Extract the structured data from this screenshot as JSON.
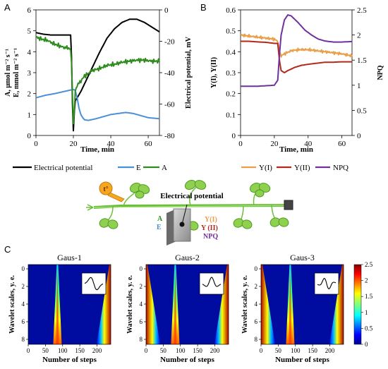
{
  "panel_labels": {
    "a": "A",
    "b": "B",
    "c": "C"
  },
  "schematic": {
    "title": "Electrical potential",
    "heater_label": "t°",
    "left_labels": {
      "a": "A",
      "e": "E"
    },
    "right_labels": {
      "y1": "Y(I)",
      "y2": "Y (II)",
      "npq": "NPQ"
    }
  },
  "colors": {
    "electrical_potential": "#000000",
    "E": "#4a90d9",
    "A": "#2e8b1e",
    "YI": "#e8a04a",
    "YII": "#b02a1a",
    "NPQ": "#7030a0"
  },
  "chart_data": [
    {
      "type": "line",
      "panel": "A",
      "xlabel": "Time, min",
      "ylabel_left_1": "A, μmol m⁻² s⁻¹",
      "ylabel_left_2": "E, mmol m⁻² s⁻¹",
      "ylabel_right": "Electrical potential, mV",
      "xlim": [
        0,
        66
      ],
      "xticks": [
        "0",
        "20",
        "40",
        "60"
      ],
      "ylim_left": [
        0,
        6
      ],
      "yticks_left": [
        "0",
        "1",
        "2",
        "3",
        "4",
        "5",
        "6"
      ],
      "ylim_right": [
        -80,
        0
      ],
      "yticks_right": [
        "0",
        "-20",
        "-40",
        "-60",
        "-80"
      ],
      "legend": [
        "Electrical potential",
        "E",
        "A"
      ],
      "series": [
        {
          "name": "Electrical potential",
          "axis": "right",
          "x": [
            0,
            4,
            8,
            12,
            16,
            18.5,
            19,
            19.5,
            20,
            20.5,
            21,
            22,
            24,
            26,
            30,
            34,
            38,
            42,
            46,
            50,
            54,
            58,
            62,
            66
          ],
          "y": [
            -14.5,
            -15.5,
            -16,
            -16,
            -16,
            -16,
            -30,
            -60,
            -77,
            -65,
            -58,
            -56,
            -52,
            -47,
            -37,
            -27,
            -18,
            -12,
            -8,
            -6,
            -6,
            -8,
            -11,
            -14
          ]
        },
        {
          "name": "E",
          "axis": "left",
          "x": [
            0,
            5,
            10,
            15,
            20,
            21,
            22,
            23,
            24,
            25,
            26,
            28,
            32,
            36,
            40,
            44,
            48,
            52,
            56,
            60,
            66
          ],
          "y": [
            1.8,
            1.92,
            2.0,
            2.1,
            2.2,
            2.15,
            1.8,
            1.3,
            1.0,
            0.85,
            0.75,
            0.72,
            0.8,
            0.9,
            1.0,
            1.05,
            1.1,
            1.05,
            0.95,
            0.85,
            0.8
          ]
        },
        {
          "name": "A",
          "axis": "left",
          "x": [
            0,
            3,
            6,
            9,
            12,
            15,
            17,
            18.5,
            19,
            19.5,
            20,
            20.5,
            21,
            22,
            24,
            26,
            28,
            30,
            34,
            38,
            42,
            46,
            50,
            54,
            58,
            62,
            66
          ],
          "y": [
            4.7,
            4.6,
            4.55,
            4.4,
            4.3,
            4.2,
            4.2,
            4.1,
            3.4,
            2.0,
            0.5,
            1.2,
            2.1,
            2.4,
            2.6,
            2.85,
            2.95,
            3.1,
            3.2,
            3.35,
            3.4,
            3.5,
            3.55,
            3.6,
            3.6,
            3.55,
            3.55
          ]
        }
      ]
    },
    {
      "type": "line",
      "panel": "B",
      "xlabel": "Time, min",
      "ylabel_left": "Y(I), Y(II)",
      "ylabel_right": "NPQ",
      "xlim": [
        0,
        66
      ],
      "xticks": [
        "0",
        "20",
        "40",
        "60"
      ],
      "ylim_left": [
        0,
        0.6
      ],
      "yticks_left": [
        "0",
        "0.1",
        "0.2",
        "0.3",
        "0.4",
        "0.5",
        "0.6"
      ],
      "ylim_right": [
        0,
        2.5
      ],
      "yticks_right": [
        "0",
        "0.5",
        "1",
        "1.5",
        "2",
        "2.5"
      ],
      "legend": [
        "Y(I)",
        "Y(II)",
        "NPQ"
      ],
      "series": [
        {
          "name": "Y(I)",
          "axis": "left",
          "x": [
            0,
            5,
            10,
            15,
            20,
            22,
            23,
            24,
            26,
            30,
            35,
            40,
            45,
            50,
            55,
            60,
            66
          ],
          "y": [
            0.48,
            0.475,
            0.47,
            0.465,
            0.46,
            0.45,
            0.4,
            0.38,
            0.39,
            0.405,
            0.41,
            0.41,
            0.405,
            0.4,
            0.395,
            0.39,
            0.38
          ]
        },
        {
          "name": "Y(II)",
          "axis": "left",
          "x": [
            0,
            5,
            10,
            15,
            20,
            22,
            23,
            24,
            26,
            28,
            32,
            36,
            40,
            45,
            50,
            55,
            60,
            66
          ],
          "y": [
            0.45,
            0.45,
            0.447,
            0.445,
            0.44,
            0.44,
            0.36,
            0.31,
            0.3,
            0.31,
            0.325,
            0.335,
            0.34,
            0.345,
            0.35,
            0.35,
            0.352,
            0.352
          ]
        },
        {
          "name": "NPQ",
          "axis": "right",
          "x": [
            0,
            5,
            10,
            15,
            20,
            22,
            23,
            24,
            26,
            28,
            30,
            34,
            38,
            42,
            46,
            50,
            55,
            60,
            66
          ],
          "y": [
            0.98,
            0.98,
            0.98,
            0.99,
            1.0,
            1.1,
            1.6,
            2.0,
            2.3,
            2.4,
            2.38,
            2.25,
            2.1,
            2.0,
            1.92,
            1.88,
            1.86,
            1.86,
            1.87
          ]
        }
      ]
    },
    {
      "type": "heatmap",
      "panel": "C",
      "colorbar": {
        "min": 0,
        "max": 2.5,
        "ticks": [
          "0",
          "0.5",
          "1",
          "1.5",
          "2",
          "2.5"
        ]
      },
      "panels": [
        {
          "title": "Gaus-1",
          "xlabel": "Number of steps",
          "ylabel": "Wavelet scales, y. e.",
          "xticks": [
            "0",
            "50",
            "100",
            "150",
            "200"
          ],
          "yticks": [
            "0",
            "2",
            "4",
            "6",
            "8"
          ],
          "spike_step": 85,
          "edge_cones": [
            "right"
          ]
        },
        {
          "title": "Gaus-2",
          "xlabel": "Number of steps",
          "ylabel": "Wavelet scales, y. e.",
          "xticks": [
            "0",
            "50",
            "100",
            "150",
            "200"
          ],
          "yticks": [
            "0",
            "2",
            "4",
            "6",
            "8"
          ],
          "spike_step": 85,
          "edge_cones": [
            "left",
            "right"
          ]
        },
        {
          "title": "Gaus-3",
          "xlabel": "Number of steps",
          "ylabel": "Wavelet scales, y. e.",
          "xticks": [
            "0",
            "50",
            "100",
            "150",
            "200"
          ],
          "yticks": [
            "0",
            "2",
            "4",
            "6",
            "8"
          ],
          "spike_step": 85,
          "edge_cones": [
            "left",
            "right"
          ]
        }
      ]
    }
  ]
}
